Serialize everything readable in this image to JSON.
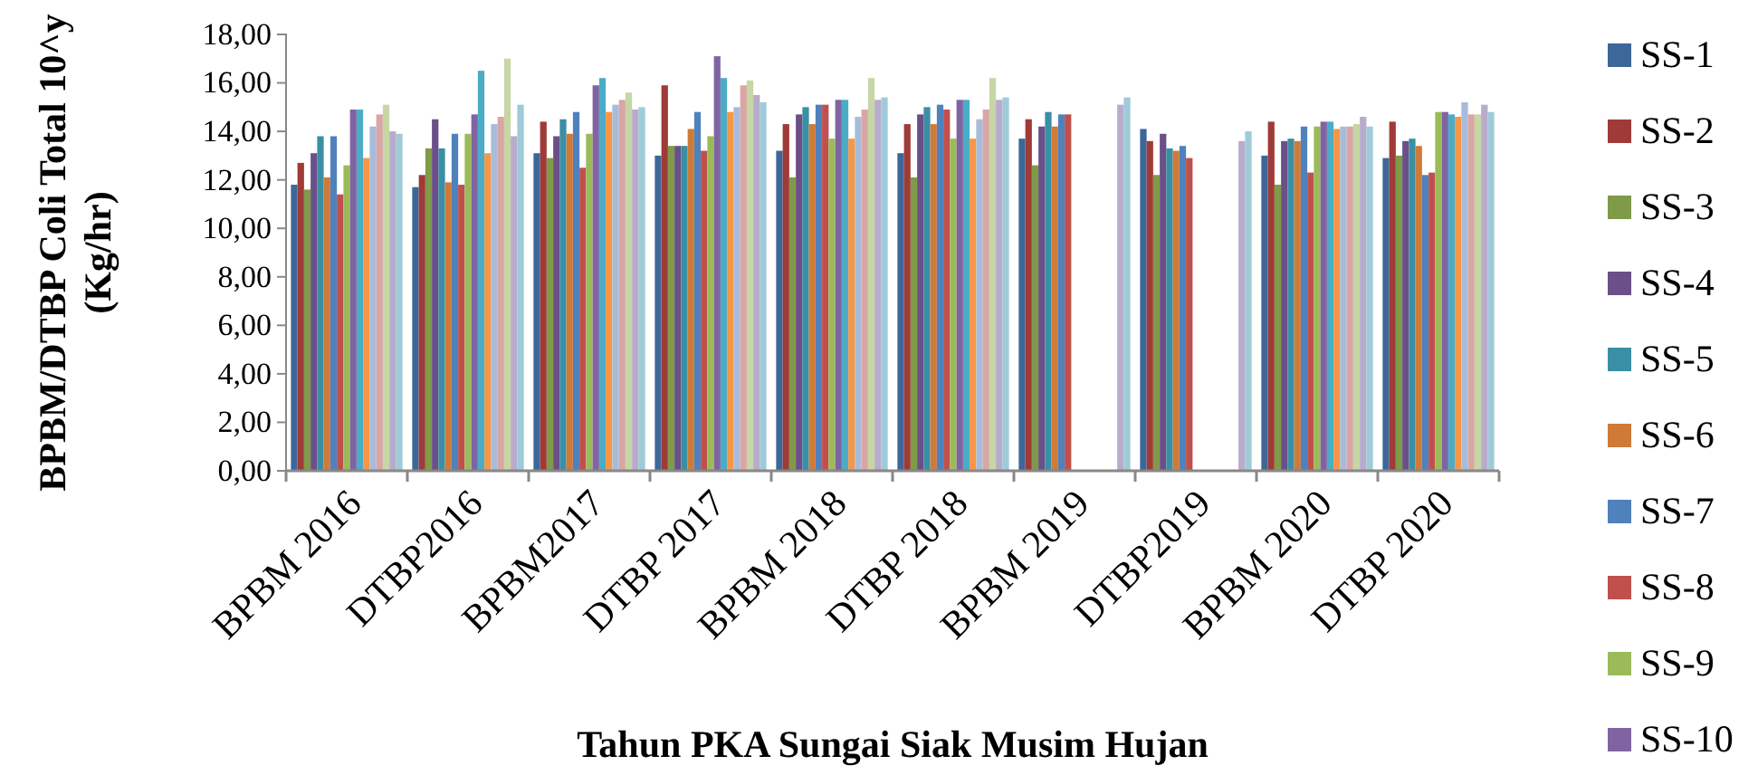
{
  "chart_data": {
    "type": "bar",
    "xlabel": "Tahun PKA Sungai Siak Musim Hujan",
    "ylabel": "BPBM/DTBP Coli Total 10^y\n(Kg/hr)",
    "categories": [
      "BPBM 2016",
      "DTBP2016",
      "BPBM2017",
      "DTBP 2017",
      "BPBM 2018",
      "DTBP 2018",
      "BPBM 2019",
      "DTBP2019",
      "BPBM 2020",
      "DTBP 2020"
    ],
    "ylim": [
      0,
      18
    ],
    "yticks": [
      {
        "value": 0,
        "label": "0,00"
      },
      {
        "value": 2,
        "label": "2,00"
      },
      {
        "value": 4,
        "label": "4,00"
      },
      {
        "value": 6,
        "label": "6,00"
      },
      {
        "value": 8,
        "label": "8,00"
      },
      {
        "value": 10,
        "label": "10,00"
      },
      {
        "value": 12,
        "label": "12,00"
      },
      {
        "value": 14,
        "label": "14,00"
      },
      {
        "value": 16,
        "label": "16,00"
      },
      {
        "value": 18,
        "label": "18,00"
      }
    ],
    "grid": false,
    "legend": "right",
    "series": [
      {
        "name": "SS-1",
        "color": "#3d6799",
        "values": [
          11.8,
          11.7,
          13.1,
          13.0,
          13.2,
          13.1,
          13.7,
          14.1,
          13.0,
          12.9
        ]
      },
      {
        "name": "SS-2",
        "color": "#9e3b38",
        "values": [
          12.7,
          12.2,
          14.4,
          15.9,
          14.3,
          14.3,
          14.5,
          13.6,
          14.4,
          14.4
        ]
      },
      {
        "name": "SS-3",
        "color": "#7f9a48",
        "values": [
          11.6,
          13.3,
          12.9,
          13.4,
          12.1,
          12.1,
          12.6,
          12.2,
          11.8,
          13.0
        ]
      },
      {
        "name": "SS-4",
        "color": "#6a4f88",
        "values": [
          13.1,
          14.5,
          13.8,
          13.4,
          14.7,
          14.7,
          14.2,
          13.9,
          13.6,
          13.6
        ]
      },
      {
        "name": "SS-5",
        "color": "#3a8fa5",
        "values": [
          13.8,
          13.3,
          14.5,
          13.4,
          15.0,
          15.0,
          14.8,
          13.3,
          13.7,
          13.7
        ]
      },
      {
        "name": "SS-6",
        "color": "#cf7b37",
        "values": [
          12.1,
          11.9,
          13.9,
          14.1,
          14.3,
          14.3,
          14.2,
          13.2,
          13.6,
          13.4
        ]
      },
      {
        "name": "SS-7",
        "color": "#4f81bd",
        "values": [
          13.8,
          13.9,
          14.8,
          14.8,
          15.1,
          15.1,
          14.7,
          13.4,
          14.2,
          12.2
        ]
      },
      {
        "name": "SS-8",
        "color": "#c0504d",
        "values": [
          11.4,
          11.8,
          12.5,
          13.2,
          15.1,
          14.9,
          14.7,
          12.9,
          12.3,
          12.3
        ]
      },
      {
        "name": "SS-9",
        "color": "#9bbb59",
        "values": [
          12.6,
          13.9,
          13.9,
          13.8,
          13.7,
          13.7,
          null,
          null,
          14.2,
          14.8
        ]
      },
      {
        "name": "SS-10",
        "color": "#8064a2",
        "values": [
          14.9,
          14.7,
          15.9,
          17.1,
          15.3,
          15.3,
          null,
          null,
          14.4,
          14.8
        ]
      },
      {
        "color": "#4bacc6",
        "values": [
          14.9,
          16.5,
          16.2,
          16.2,
          15.3,
          15.3,
          null,
          null,
          14.4,
          14.7
        ]
      },
      {
        "color": "#f79646",
        "values": [
          12.9,
          13.1,
          14.8,
          14.8,
          13.7,
          13.7,
          null,
          null,
          14.1,
          14.6
        ]
      },
      {
        "color": "#a6bcda",
        "values": [
          14.2,
          14.3,
          15.1,
          15.0,
          14.6,
          14.5,
          null,
          null,
          14.2,
          15.2
        ]
      },
      {
        "color": "#d9a6a5",
        "values": [
          14.7,
          14.6,
          15.3,
          15.9,
          14.9,
          14.9,
          null,
          null,
          14.2,
          14.7
        ]
      },
      {
        "color": "#c6d6a4",
        "values": [
          15.1,
          17.0,
          15.6,
          16.1,
          16.2,
          16.2,
          null,
          null,
          14.3,
          14.7
        ]
      },
      {
        "color": "#b8abcb",
        "values": [
          14.0,
          13.8,
          14.9,
          15.5,
          15.3,
          15.3,
          15.1,
          13.6,
          14.6,
          15.1
        ]
      },
      {
        "color": "#9fcbd9",
        "values": [
          13.9,
          15.1,
          15.0,
          15.2,
          15.4,
          15.4,
          15.4,
          14.0,
          14.2,
          14.8
        ]
      }
    ]
  }
}
